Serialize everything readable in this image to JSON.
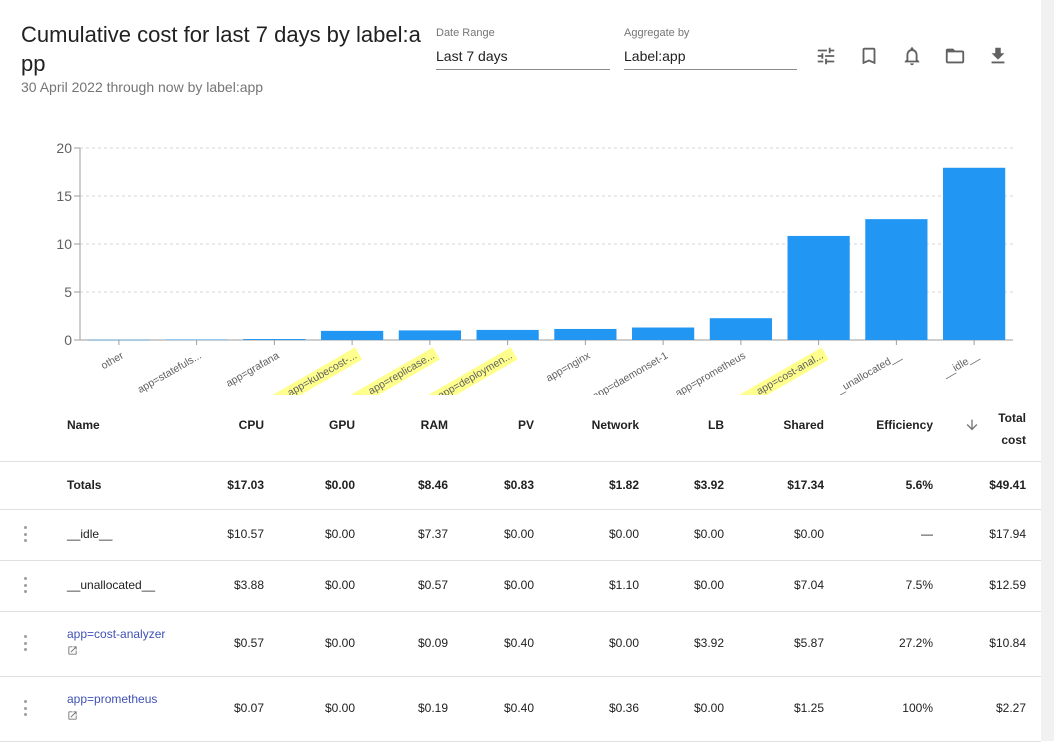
{
  "header": {
    "title": "Cumulative cost for last 7 days by label:app",
    "subtitle": "30 April 2022 through now by label:app"
  },
  "controls": {
    "date_range": {
      "label": "Date Range",
      "value": "Last 7 days"
    },
    "aggregate": {
      "label": "Aggregate by",
      "value": "Label:app"
    }
  },
  "toolbar_icons": [
    "tune-icon",
    "bookmark-icon",
    "bell-icon",
    "folder-icon",
    "download-icon"
  ],
  "colors": {
    "bar": "#2196f3",
    "highlight": "#ffff8d",
    "link": "#3f51b5"
  },
  "chart_data": {
    "type": "bar",
    "categories": [
      "other",
      "app=statefuls...",
      "app=grafana",
      "app=kubecost-...",
      "app=replicase...",
      "app=deploymen...",
      "app=nginx",
      "app=daemonset-1",
      "app=prometheus",
      "app=cost-anal...",
      "__unallocated__",
      "__idle__"
    ],
    "highlighted": [
      false,
      false,
      false,
      true,
      true,
      true,
      false,
      false,
      false,
      true,
      false,
      false
    ],
    "values": [
      0.02,
      0.05,
      0.1,
      0.95,
      1.0,
      1.05,
      1.15,
      1.3,
      2.27,
      10.84,
      12.59,
      17.94
    ],
    "yticks": [
      0,
      5,
      10,
      15,
      20
    ],
    "ylim": [
      0,
      20
    ],
    "grid": true
  },
  "table": {
    "headers": [
      "Name",
      "CPU",
      "GPU",
      "RAM",
      "PV",
      "Network",
      "LB",
      "Shared",
      "Efficiency",
      "Total cost"
    ],
    "sort_icon": "arrow-down-icon",
    "totals": [
      "Totals",
      "$17.03",
      "$0.00",
      "$8.46",
      "$0.83",
      "$1.82",
      "$3.92",
      "$17.34",
      "5.6%",
      "$49.41"
    ],
    "rows": [
      {
        "name": "__idle__",
        "link": false,
        "values": [
          "$10.57",
          "$0.00",
          "$7.37",
          "$0.00",
          "$0.00",
          "$0.00",
          "$0.00",
          "—",
          "$17.94"
        ]
      },
      {
        "name": "__unallocated__",
        "link": false,
        "values": [
          "$3.88",
          "$0.00",
          "$0.57",
          "$0.00",
          "$1.10",
          "$0.00",
          "$7.04",
          "7.5%",
          "$12.59"
        ]
      },
      {
        "name": "app=cost-analyzer",
        "link": true,
        "values": [
          "$0.57",
          "$0.00",
          "$0.09",
          "$0.40",
          "$0.00",
          "$3.92",
          "$5.87",
          "27.2%",
          "$10.84"
        ]
      },
      {
        "name": "app=prometheus",
        "link": true,
        "values": [
          "$0.07",
          "$0.00",
          "$0.19",
          "$0.40",
          "$0.36",
          "$0.00",
          "$1.25",
          "100%",
          "$2.27"
        ]
      }
    ]
  }
}
